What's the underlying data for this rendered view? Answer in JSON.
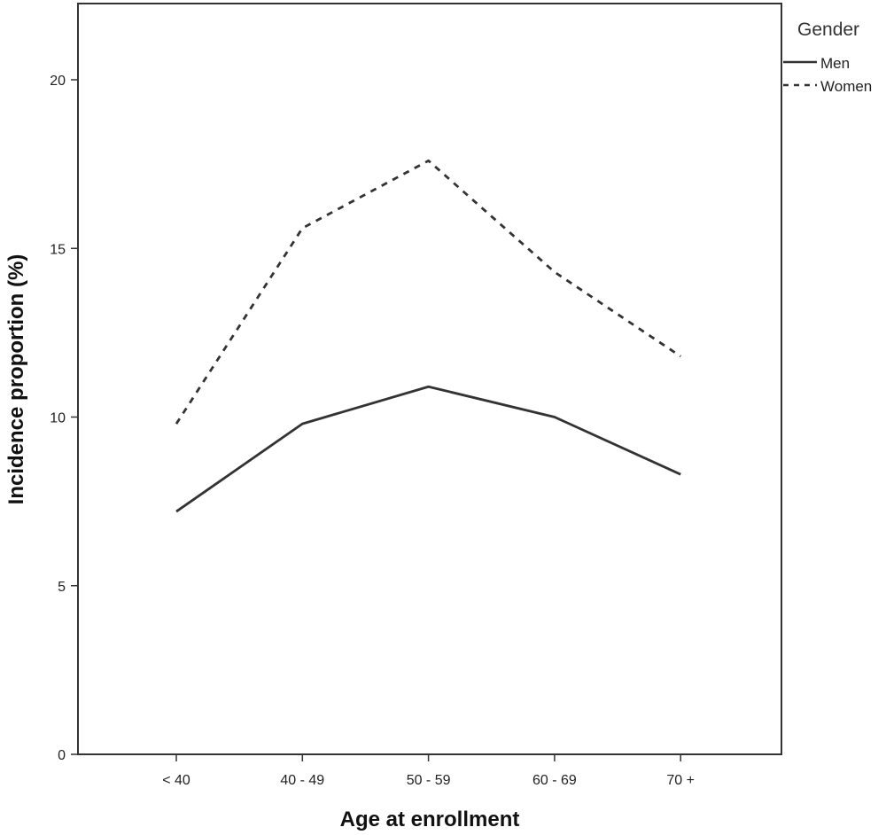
{
  "chart_data": {
    "type": "line",
    "xlabel": "Age at enrollment",
    "ylabel": "Incidence proportion (%)",
    "categories": [
      "< 40",
      "40 - 49",
      "50 - 59",
      "60 - 69",
      "70 +"
    ],
    "ylim": [
      0,
      22
    ],
    "yticks": [
      0,
      5,
      10,
      15,
      20
    ],
    "grid": false,
    "legend": {
      "title": "Gender",
      "position": "right-top"
    },
    "series": [
      {
        "name": "Men",
        "style": "solid",
        "values": [
          7.2,
          9.8,
          10.9,
          10.0,
          8.3
        ]
      },
      {
        "name": "Women",
        "style": "dashed",
        "values": [
          9.8,
          15.6,
          17.6,
          14.3,
          11.8
        ]
      }
    ],
    "colors": {
      "line": "#333333",
      "axis": "#333333",
      "background": "#ffffff"
    }
  }
}
